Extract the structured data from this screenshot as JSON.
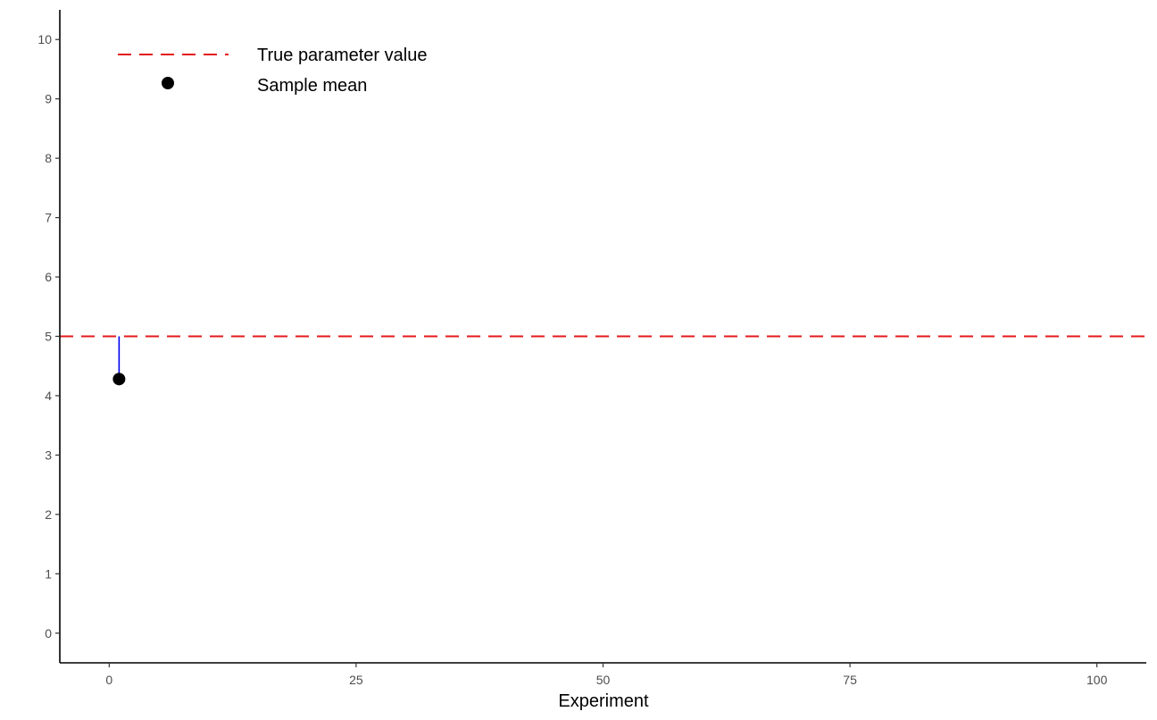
{
  "chart_data": {
    "type": "scatter",
    "title": "",
    "xlabel": "Experiment",
    "ylabel": "",
    "xlim": [
      -5,
      105
    ],
    "ylim": [
      -0.5,
      10.5
    ],
    "x_ticks": [
      0,
      25,
      50,
      75,
      100
    ],
    "x_tick_labels": [
      "0",
      "25",
      "50",
      "75",
      "100"
    ],
    "y_ticks": [
      0,
      1,
      2,
      3,
      4,
      5,
      6,
      7,
      8,
      9,
      10
    ],
    "y_tick_labels": [
      "0",
      "1",
      "2",
      "3",
      "4",
      "5",
      "6",
      "7",
      "8",
      "9",
      "10"
    ],
    "grid": false,
    "legend_position": "top-left",
    "reference_line": {
      "name": "True parameter value",
      "y": 5,
      "color": "#e41a1c",
      "style": "dashed"
    },
    "series": [
      {
        "name": "Sample mean",
        "color": "#000000",
        "points": [
          {
            "x": 1,
            "y": 4.28
          }
        ]
      }
    ],
    "error_segments": {
      "color": "#0000ee",
      "segments": [
        {
          "x": 1,
          "y_from": 4.28,
          "y_to": 5
        }
      ]
    }
  }
}
